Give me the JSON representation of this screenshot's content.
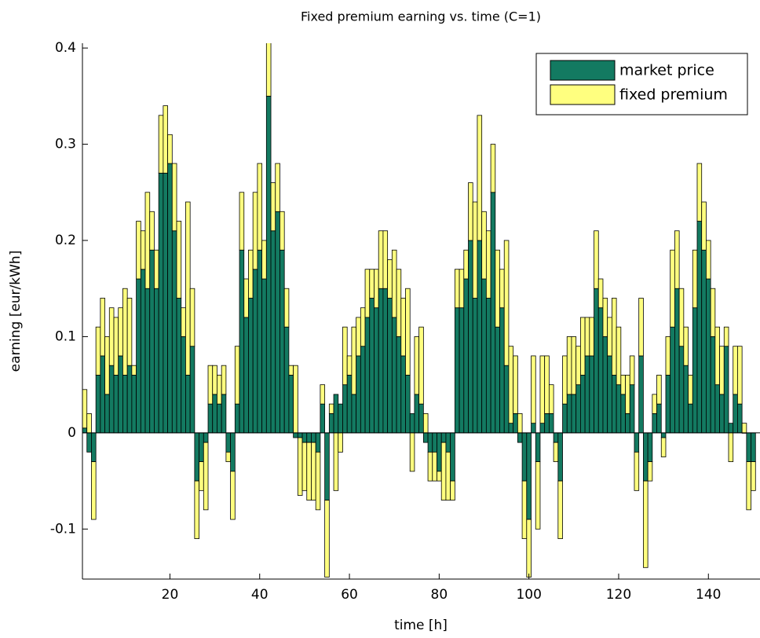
{
  "chart_data": {
    "type": "stacked_bar",
    "title": "Fixed premium earning vs. time (C=1)",
    "x_label": "time [h]",
    "y_label": "earning [eur/kWh]",
    "x": [
      1,
      2,
      3,
      4,
      5,
      6,
      7,
      8,
      9,
      10,
      11,
      12,
      13,
      14,
      15,
      16,
      17,
      18,
      19,
      20,
      21,
      22,
      23,
      24,
      25,
      26,
      27,
      28,
      29,
      30,
      31,
      32,
      33,
      34,
      35,
      36,
      37,
      38,
      39,
      40,
      41,
      42,
      43,
      44,
      45,
      46,
      47,
      48,
      49,
      50,
      51,
      52,
      53,
      54,
      55,
      56,
      57,
      58,
      59,
      60,
      61,
      62,
      63,
      64,
      65,
      66,
      67,
      68,
      69,
      70,
      71,
      72,
      73,
      74,
      75,
      76,
      77,
      78,
      79,
      80,
      81,
      82,
      83,
      84,
      85,
      86,
      87,
      88,
      89,
      90,
      91,
      92,
      93,
      94,
      95,
      96,
      97,
      98,
      99,
      100,
      101,
      102,
      103,
      104,
      105,
      106,
      107,
      108,
      109,
      110,
      111,
      112,
      113,
      114,
      115,
      116,
      117,
      118,
      119,
      120,
      121,
      122,
      123,
      124,
      125,
      126,
      127,
      128,
      129,
      130,
      131,
      132,
      133,
      134,
      135,
      136,
      137,
      138,
      139,
      140,
      141,
      142,
      143,
      144,
      145,
      146,
      147,
      148,
      149,
      150
    ],
    "series": [
      {
        "name": "market price",
        "color": "#137a61",
        "values": [
          0.005,
          -0.02,
          -0.03,
          0.06,
          0.08,
          0.04,
          0.07,
          0.06,
          0.08,
          0.06,
          0.07,
          0.06,
          0.16,
          0.17,
          0.15,
          0.19,
          0.15,
          0.27,
          0.27,
          0.28,
          0.21,
          0.14,
          0.1,
          0.06,
          0.09,
          -0.05,
          -0.03,
          -0.01,
          0.03,
          0.04,
          0.03,
          0.04,
          -0.02,
          -0.04,
          0.03,
          0.19,
          0.12,
          0.14,
          0.17,
          0.19,
          0.16,
          0.35,
          0.21,
          0.23,
          0.19,
          0.11,
          0.06,
          -0.005,
          -0.005,
          -0.01,
          -0.01,
          -0.01,
          -0.02,
          0.03,
          -0.07,
          0.02,
          0.04,
          0.03,
          0.05,
          0.06,
          0.04,
          0.08,
          0.09,
          0.12,
          0.14,
          0.13,
          0.15,
          0.15,
          0.14,
          0.12,
          0.1,
          0.08,
          0.06,
          0.02,
          0.04,
          0.03,
          -0.01,
          -0.02,
          -0.02,
          -0.04,
          -0.01,
          -0.02,
          -0.05,
          0.13,
          0.13,
          0.16,
          0.2,
          0.14,
          0.2,
          0.16,
          0.14,
          0.25,
          0.11,
          0.13,
          0.07,
          0.01,
          0.02,
          -0.01,
          -0.05,
          -0.09,
          0.01,
          -0.03,
          0.01,
          0.02,
          0.02,
          -0.01,
          -0.05,
          0.03,
          0.04,
          0.04,
          0.05,
          0.06,
          0.08,
          0.08,
          0.15,
          0.13,
          0.1,
          0.08,
          0.06,
          0.05,
          0.04,
          0.02,
          0.05,
          -0.02,
          0.08,
          -0.05,
          -0.03,
          0.02,
          0.03,
          -0.005,
          0.06,
          0.11,
          0.15,
          0.09,
          0.07,
          0.03,
          0.13,
          0.22,
          0.19,
          0.16,
          0.1,
          0.05,
          0.04,
          0.09,
          0.01,
          0.04,
          0.03,
          0.0,
          -0.03,
          -0.03
        ]
      },
      {
        "name": "fixed premium",
        "color": "#ffff7f",
        "values": [
          0.04,
          0.02,
          -0.06,
          0.05,
          0.06,
          0.06,
          0.06,
          0.06,
          0.05,
          0.09,
          0.07,
          0.01,
          0.06,
          0.04,
          0.1,
          0.04,
          0.04,
          0.06,
          0.07,
          0.03,
          0.07,
          0.08,
          0.03,
          0.18,
          0.06,
          -0.06,
          -0.03,
          -0.07,
          0.04,
          0.03,
          0.03,
          0.03,
          -0.01,
          -0.05,
          0.06,
          0.06,
          0.04,
          0.05,
          0.08,
          0.09,
          0.04,
          0.06,
          0.05,
          0.05,
          0.04,
          0.04,
          0.01,
          0.07,
          -0.06,
          -0.05,
          -0.06,
          -0.06,
          -0.06,
          0.02,
          -0.08,
          0.01,
          -0.06,
          -0.02,
          0.06,
          0.02,
          0.07,
          0.04,
          0.04,
          0.05,
          0.03,
          0.04,
          0.06,
          0.06,
          0.04,
          0.07,
          0.07,
          0.06,
          0.09,
          -0.04,
          0.06,
          0.08,
          0.02,
          -0.03,
          -0.03,
          -0.01,
          -0.06,
          -0.05,
          -0.02,
          0.04,
          0.04,
          0.03,
          0.06,
          0.1,
          0.13,
          0.07,
          0.07,
          0.05,
          0.08,
          0.04,
          0.13,
          0.08,
          0.06,
          0.02,
          -0.06,
          -0.06,
          0.07,
          -0.07,
          0.07,
          0.06,
          0.03,
          -0.02,
          -0.06,
          0.05,
          0.06,
          0.06,
          0.04,
          0.06,
          0.04,
          0.04,
          0.06,
          0.03,
          0.04,
          0.04,
          0.08,
          0.06,
          0.02,
          0.04,
          0.03,
          -0.04,
          0.06,
          -0.09,
          -0.02,
          0.02,
          0.03,
          -0.02,
          0.04,
          0.08,
          0.06,
          0.06,
          0.04,
          0.03,
          0.06,
          0.06,
          0.05,
          0.04,
          0.05,
          0.06,
          0.05,
          0.02,
          -0.03,
          0.05,
          0.06,
          0.01,
          -0.05,
          -0.03
        ]
      }
    ],
    "xlim": [
      0.5,
      151.5
    ],
    "ylim": [
      -0.152,
      0.405
    ],
    "xticks": [
      20,
      40,
      60,
      80,
      100,
      120,
      140
    ],
    "yticks": [
      -0.1,
      0,
      0.1,
      0.2,
      0.3,
      0.4
    ],
    "legend": "top-right",
    "grid": false
  }
}
